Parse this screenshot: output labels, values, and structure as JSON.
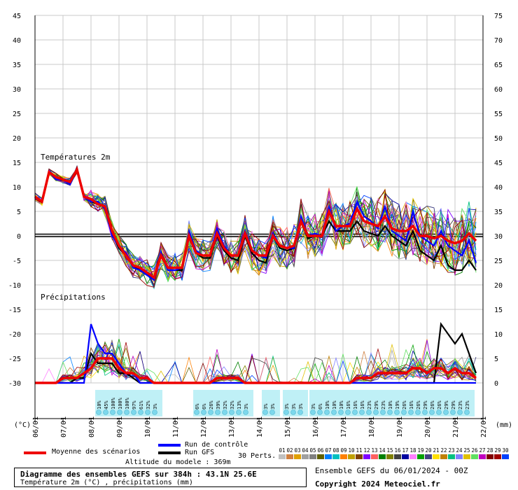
{
  "chart_data": {
    "type": "line",
    "title": "Diagramme des ensembles GEFS sur 384h : 43.1N 25.6E",
    "subtitle": "Température 2m (°C) , précipitations (mm)",
    "section_labels": {
      "temperature": "Températures 2m",
      "precipitation": "Précipitations"
    },
    "left_axis": {
      "unit": "(°C)",
      "ticks": [
        45,
        40,
        35,
        30,
        25,
        20,
        15,
        10,
        5,
        0,
        -5,
        -10,
        -15,
        -20,
        -25,
        -30
      ]
    },
    "right_axis": {
      "unit": "(mm)",
      "ticks": [
        75,
        70,
        65,
        60,
        55,
        50,
        45,
        40,
        35,
        30,
        25,
        20,
        15,
        10,
        5,
        0
      ]
    },
    "x_dates": [
      "06/01",
      "07/01",
      "08/01",
      "09/01",
      "10/01",
      "11/01",
      "12/01",
      "13/01",
      "14/01",
      "15/01",
      "16/01",
      "17/01",
      "18/01",
      "19/01",
      "20/01",
      "21/01",
      "22/01"
    ],
    "series": [
      {
        "name": "Moyenne des scénarios",
        "color": "#ee0000",
        "temperature": [
          8,
          7,
          13,
          12,
          11.5,
          11,
          13.5,
          8,
          7.5,
          6.5,
          6,
          1,
          -2,
          -4,
          -6,
          -6.5,
          -7.5,
          -8.5,
          -4,
          -6.5,
          -6.5,
          -6.5,
          0,
          -3.5,
          -4,
          -4,
          0.5,
          -2.5,
          -4,
          -4,
          0.5,
          -3,
          -4,
          -4,
          0,
          -2,
          -2.5,
          -2,
          3,
          0,
          0,
          0,
          5,
          2,
          2,
          2,
          5.5,
          3,
          2.5,
          2,
          4,
          1.5,
          1,
          1,
          2,
          0,
          0,
          -0.5,
          0,
          -1,
          -1.5,
          -1,
          0.5,
          -1
        ],
        "precip": [
          0,
          0,
          0,
          0,
          0.5,
          0.5,
          0.5,
          1,
          1.5,
          2.5,
          2.5,
          2.5,
          1.5,
          1,
          1,
          0.5,
          0.5,
          0,
          0,
          0,
          0,
          0,
          0,
          0,
          0,
          0,
          0.5,
          0.5,
          0.5,
          0.5,
          0,
          0,
          0,
          0,
          0,
          0,
          0,
          0,
          0,
          0,
          0,
          0,
          0,
          0,
          0,
          0,
          0.5,
          0.5,
          0.5,
          1,
          1,
          1,
          1,
          1,
          1.5,
          1.5,
          1,
          1.5,
          1.5,
          1,
          1.5,
          1,
          1,
          0.5
        ]
      },
      {
        "name": "Run de contrôle",
        "color": "#0000ff",
        "temperature": [
          8,
          7,
          13,
          11.5,
          11.5,
          10.5,
          13.5,
          8,
          7,
          7,
          5.5,
          0,
          -2,
          -3.5,
          -6.5,
          -7,
          -8,
          -9,
          -3.5,
          -7,
          -7,
          -6.5,
          1,
          -3,
          -4,
          -4,
          1.5,
          -2,
          -4,
          -4,
          1,
          -3,
          -4,
          -4.5,
          0.5,
          -2,
          -2.5,
          -2.5,
          4,
          0,
          0.5,
          0,
          6,
          1,
          2,
          2.5,
          7,
          4,
          3,
          1.5,
          6,
          1,
          0,
          -1,
          5,
          0,
          -1,
          -2,
          1,
          -2,
          -3,
          -4,
          -1,
          -5.5
        ],
        "precip": [
          0,
          0,
          0,
          0,
          0,
          0,
          0,
          0,
          6,
          4,
          3,
          3,
          2,
          1,
          1,
          0,
          0,
          0,
          0,
          0,
          0,
          0,
          0,
          0,
          0,
          0,
          0,
          0,
          0,
          0,
          0,
          0,
          0,
          0,
          0,
          0,
          0,
          0,
          0,
          0,
          0,
          0,
          0,
          0,
          0,
          0,
          0,
          0,
          0,
          0,
          0,
          0,
          0,
          0,
          0,
          0,
          0,
          0,
          0,
          0,
          0,
          0,
          0,
          0
        ]
      },
      {
        "name": "Run GFS",
        "color": "#000000",
        "temperature": [
          8,
          7,
          13,
          11.5,
          11.5,
          10.5,
          13.5,
          8,
          7,
          6.5,
          6,
          0.5,
          -2.5,
          -4,
          -6,
          -7,
          -8,
          -8.5,
          -3.5,
          -7,
          -7,
          -7,
          0.5,
          -3.5,
          -4.5,
          -4.5,
          0,
          -3,
          -4.5,
          -5,
          0,
          -3.5,
          -5,
          -5.5,
          0,
          -2.5,
          -3,
          -2.5,
          3,
          -0.5,
          0,
          0,
          3,
          1,
          1,
          1,
          3,
          1,
          0.5,
          0,
          2,
          0,
          -1,
          -2,
          1,
          -3,
          -4,
          -5,
          -2,
          -6,
          -7,
          -7,
          -5,
          -7
        ],
        "precip": [
          0,
          0,
          0,
          0,
          0,
          0,
          0.5,
          0.5,
          3,
          2,
          2,
          2,
          1,
          1,
          0.5,
          0,
          0,
          0,
          0,
          0,
          0,
          0,
          0,
          0,
          0,
          0,
          0,
          0,
          0,
          0,
          0,
          0,
          0,
          0,
          0,
          0,
          0,
          0,
          0,
          0,
          0,
          0,
          0,
          0,
          0,
          0,
          0,
          0,
          0,
          0,
          0,
          0,
          0,
          0,
          0,
          0,
          0,
          0,
          6,
          5,
          4,
          5,
          3,
          1
        ]
      }
    ],
    "perturbations_label": "30 Perts.",
    "perturbation_numbers": [
      "01",
      "02",
      "03",
      "04",
      "05",
      "06",
      "07",
      "08",
      "09",
      "10",
      "11",
      "12",
      "13",
      "14",
      "15",
      "16",
      "17",
      "18",
      "19",
      "20",
      "21",
      "22",
      "23",
      "24",
      "25",
      "26",
      "27",
      "28",
      "29",
      "30"
    ],
    "perturbation_colors": [
      "#c0c0c0",
      "#d08040",
      "#e0a000",
      "#a0a0a0",
      "#808080",
      "#606000",
      "#0080ff",
      "#00c0c0",
      "#ff8000",
      "#c0a000",
      "#804000",
      "#8000ff",
      "#ff6060",
      "#008000",
      "#808000",
      "#404040",
      "#0000a0",
      "#ff80ff",
      "#00a000",
      "#404080",
      "#ffe000",
      "#c08000",
      "#00c080",
      "#8080ff",
      "#e0c000",
      "#60e060",
      "#c000c0",
      "#800000",
      "#a00000",
      "#0040ff"
    ],
    "precip_probabilities": [
      {
        "x": 2.25,
        "values": [
          "10%",
          "45%",
          "100%",
          "100%",
          "100%",
          "97%",
          "61%",
          "32%",
          "3%"
        ]
      },
      {
        "x": 5.75,
        "values": [
          "6%",
          "6%",
          "26%",
          "39%",
          "32%",
          "32%",
          "13%",
          "3%"
        ]
      },
      {
        "x": 8.2,
        "values": [
          "3%",
          "3%"
        ]
      },
      {
        "x": 8.95,
        "values": [
          "3%",
          "3%",
          "3%"
        ]
      },
      {
        "x": 9.9,
        "values": [
          "3%",
          "6%",
          "10%",
          "10%",
          "10%",
          "16%",
          "16%",
          "16%",
          "23%",
          "29%",
          "23%",
          "10%",
          "19%",
          "26%",
          "16%",
          "26%",
          "29%",
          "26%",
          "26%",
          "29%",
          "29%",
          "23%",
          "23%"
        ]
      }
    ],
    "altitude_label": "Altitude du modele : 369m",
    "run_label": "Ensemble GEFS du 06/01/2024 - 00Z",
    "copyright": "Copyright 2024 Meteociel.fr"
  }
}
